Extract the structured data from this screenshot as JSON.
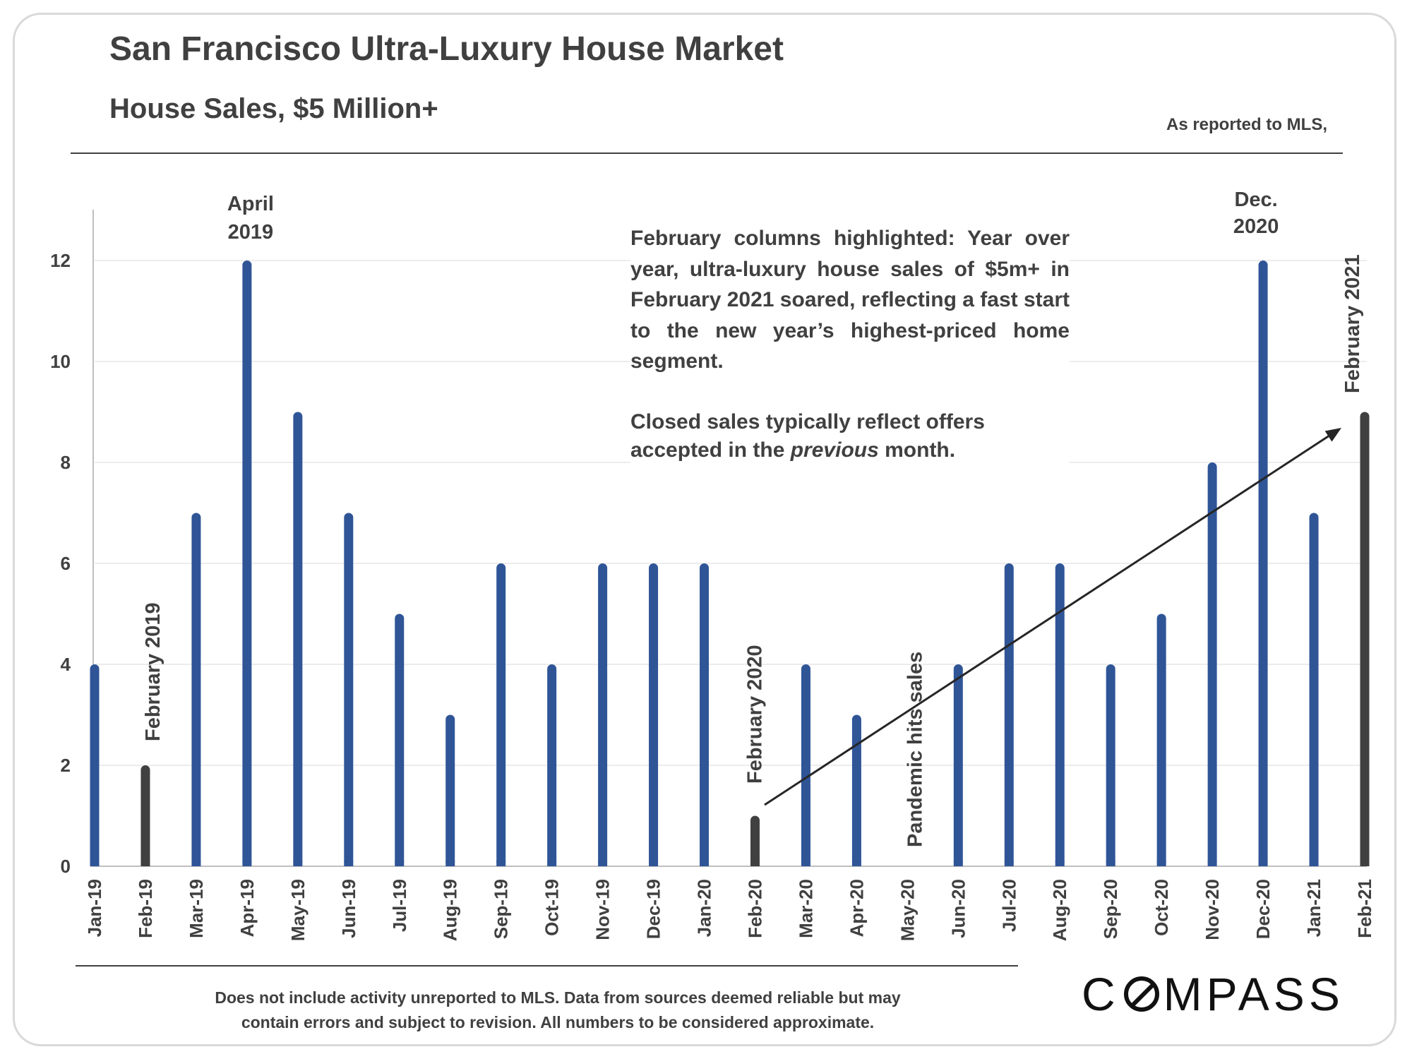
{
  "header": {
    "title": "San Francisco Ultra-Luxury House Market",
    "subtitle": "House Sales, $5 Million+",
    "source": "As reported to MLS,"
  },
  "annotation": {
    "paragraph1": "February columns highlighted: Year over year, ultra-luxury house sales of $5m+ in February 2021 soared, reflecting a fast start to the new year’s highest-priced home segment.",
    "paragraph2_before": "Closed sales typically reflect offers accepted in the ",
    "paragraph2_italic": "previous",
    "paragraph2_after": " month."
  },
  "labels": {
    "feb_2019": "February 2019",
    "feb_2020": "February 2020",
    "feb_2021": "February 2021",
    "april_2019_line1": "April",
    "april_2019_line2": "2019",
    "dec_2020_line1": "Dec.",
    "dec_2020_line2": "2020",
    "pandemic": "Pandemic hits sales"
  },
  "footer": {
    "line1": "Does not include activity unreported to MLS. Data from sources deemed reliable but may",
    "line2": "contain errors and subject to revision.  All numbers to be considered approximate.",
    "logo_before": "C",
    "logo_after": "MPASS"
  },
  "colors": {
    "bar": "#2f5597",
    "highlight": "#404040",
    "pandemic": "#c00000",
    "grid": "#e6e6e6"
  },
  "chart_data": {
    "type": "bar",
    "title": "House Sales, $5 Million+",
    "xlabel": "",
    "ylabel": "",
    "categories": [
      "Jan-19",
      "Feb-19",
      "Mar-19",
      "Apr-19",
      "May-19",
      "Jun-19",
      "Jul-19",
      "Aug-19",
      "Sep-19",
      "Oct-19",
      "Nov-19",
      "Dec-19",
      "Jan-20",
      "Feb-20",
      "Mar-20",
      "Apr-20",
      "May-20",
      "Jun-20",
      "Jul-20",
      "Aug-20",
      "Sep-20",
      "Oct-20",
      "Nov-20",
      "Dec-20",
      "Jan-21",
      "Feb-21"
    ],
    "values": [
      4,
      2,
      7,
      12,
      9,
      7,
      5,
      3,
      6,
      4,
      6,
      6,
      6,
      1,
      4,
      3,
      0,
      4,
      6,
      6,
      4,
      5,
      8,
      12,
      7,
      9
    ],
    "highlighted": [
      1,
      13,
      25
    ],
    "yticks": [
      0,
      2,
      4,
      6,
      8,
      10,
      12
    ],
    "ylim": [
      0,
      13
    ],
    "grid": true,
    "legend": "none"
  }
}
